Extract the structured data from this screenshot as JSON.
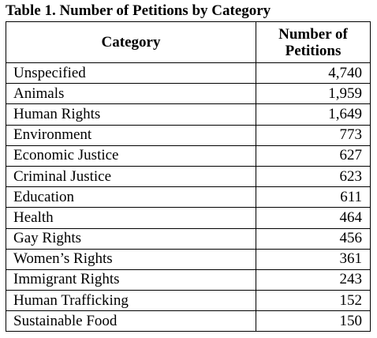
{
  "table": {
    "title": "Table 1. Number of Petitions by Category",
    "header": [
      "Category",
      "Number of Petitions"
    ],
    "rows": [
      [
        "Unspecified",
        "4,740"
      ],
      [
        "Animals",
        "1,959"
      ],
      [
        "Human Rights",
        "1,649"
      ],
      [
        "Environment",
        "773"
      ],
      [
        "Economic Justice",
        "627"
      ],
      [
        "Criminal Justice",
        "623"
      ],
      [
        "Education",
        "611"
      ],
      [
        "Health",
        "464"
      ],
      [
        "Gay Rights",
        "456"
      ],
      [
        "Women’s Rights",
        "361"
      ],
      [
        "Immigrant Rights",
        "243"
      ],
      [
        "Human Trafficking",
        "152"
      ],
      [
        "Sustainable Food",
        "150"
      ]
    ]
  }
}
